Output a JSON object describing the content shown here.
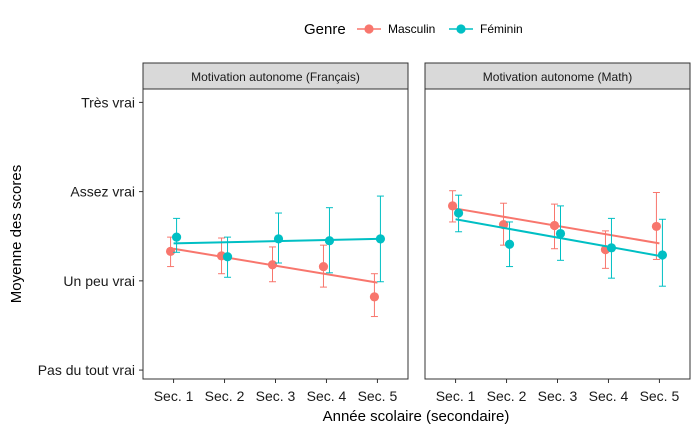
{
  "chart_data": {
    "type": "line",
    "legend": {
      "title": "Genre",
      "placement": "top"
    },
    "xlabel": "Année scolaire (secondaire)",
    "ylabel": "Moyenne des scores",
    "x_categories": [
      "Sec. 1",
      "Sec. 2",
      "Sec. 3",
      "Sec. 4",
      "Sec. 5"
    ],
    "y_ticks": [
      {
        "value": 1,
        "label": "Pas du tout vrai"
      },
      {
        "value": 2,
        "label": "Un peu vrai"
      },
      {
        "value": 3,
        "label": "Assez vrai"
      },
      {
        "value": 4,
        "label": "Très vrai"
      }
    ],
    "ylim": [
      0.9,
      4.15
    ],
    "grid": false,
    "series_styles": [
      {
        "name": "Masculin",
        "color": "#F8766D"
      },
      {
        "name": "Féminin",
        "color": "#00BFC4"
      }
    ],
    "panels": [
      {
        "title": "Motivation autonome (Français)",
        "series": [
          {
            "name": "Masculin",
            "values": [
              2.33,
              2.28,
              2.18,
              2.16,
              1.82
            ],
            "lower": [
              2.16,
              2.08,
              1.99,
              1.93,
              1.6
            ],
            "upper": [
              2.49,
              2.48,
              2.38,
              2.4,
              2.08
            ],
            "trend": [
              2.36,
              1.98
            ]
          },
          {
            "name": "Féminin",
            "values": [
              2.49,
              2.27,
              2.47,
              2.45,
              2.47
            ],
            "lower": [
              2.32,
              2.04,
              2.2,
              2.09,
              1.99
            ],
            "upper": [
              2.7,
              2.49,
              2.76,
              2.82,
              2.95
            ],
            "trend": [
              2.42,
              2.47
            ]
          }
        ]
      },
      {
        "title": "Motivation autonome (Math)",
        "series": [
          {
            "name": "Masculin",
            "values": [
              2.84,
              2.63,
              2.62,
              2.35,
              2.61
            ],
            "lower": [
              2.66,
              2.4,
              2.36,
              2.14,
              2.24
            ],
            "upper": [
              3.01,
              2.87,
              2.86,
              2.56,
              2.99
            ],
            "trend": [
              2.81,
              2.42
            ]
          },
          {
            "name": "Féminin",
            "values": [
              2.76,
              2.41,
              2.53,
              2.37,
              2.29
            ],
            "lower": [
              2.55,
              2.16,
              2.23,
              2.03,
              1.94
            ],
            "upper": [
              2.96,
              2.66,
              2.84,
              2.7,
              2.69
            ],
            "trend": [
              2.69,
              2.28
            ]
          }
        ]
      }
    ]
  }
}
